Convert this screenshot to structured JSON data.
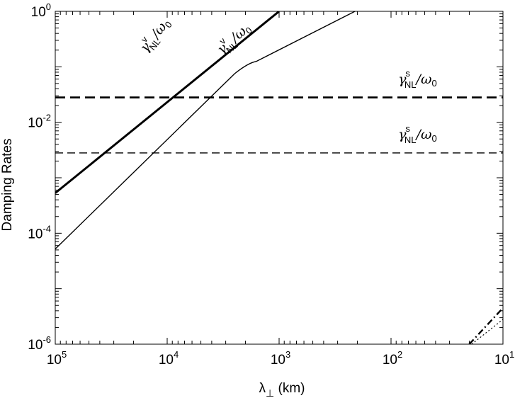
{
  "chart_data": {
    "type": "line",
    "title": "",
    "xlabel": "λ⊥ (km)",
    "xlabel_main": "λ",
    "xlabel_sub": "⊥",
    "xlabel_unit": " (km)",
    "ylabel": "Damping Rates",
    "xscale": "log",
    "yscale": "log",
    "x_reversed": true,
    "xlim": [
      100000,
      10
    ],
    "ylim": [
      1e-06,
      1
    ],
    "x_ticks": [
      {
        "value": 100000,
        "base": "10",
        "exp": "5"
      },
      {
        "value": 10000,
        "base": "10",
        "exp": "4"
      },
      {
        "value": 1000,
        "base": "10",
        "exp": "3"
      },
      {
        "value": 100,
        "base": "10",
        "exp": "2"
      },
      {
        "value": 10,
        "base": "10",
        "exp": "1"
      }
    ],
    "y_ticks": [
      {
        "value": 1,
        "base": "10",
        "exp": "0"
      },
      {
        "value": 0.01,
        "base": "10",
        "exp": "-2"
      },
      {
        "value": 0.0001,
        "base": "10",
        "exp": "-4"
      },
      {
        "value": 1e-06,
        "base": "10",
        "exp": "-6"
      }
    ],
    "series": [
      {
        "name": "γ^v_NL/ω0 (thick)",
        "style": "solid-thick",
        "points": [
          [
            100000,
            0.00053
          ],
          [
            1000,
            1.0
          ]
        ]
      },
      {
        "name": "γ^v_NL/ω0 (thin)",
        "style": "solid-thin",
        "points": [
          [
            100000,
            5.2e-05
          ],
          [
            2500,
            0.075
          ],
          [
            1600,
            0.125
          ],
          [
            210,
            1.0
          ]
        ]
      },
      {
        "name": "γ^s_NL/ω0 (thick)",
        "style": "dashed-thick",
        "points": [
          [
            100000,
            0.028
          ],
          [
            10,
            0.028
          ]
        ]
      },
      {
        "name": "γ^s_NL/ω0 (thin)",
        "style": "dashed-thin",
        "points": [
          [
            100000,
            0.0028
          ],
          [
            10,
            0.0028
          ]
        ]
      },
      {
        "name": "dash-dot",
        "style": "dashdot",
        "points": [
          [
            20,
            1e-06
          ],
          [
            10,
            4.5e-06
          ]
        ]
      },
      {
        "name": "dotted",
        "style": "dotted",
        "points": [
          [
            19,
            1e-06
          ],
          [
            10,
            2.8e-06
          ]
        ]
      }
    ],
    "annotations": [
      {
        "main": "γ",
        "sup": "v",
        "sub": "NL",
        "tail": "/ω",
        "tail_sub": "0",
        "x": 12000,
        "y": 0.33,
        "rotate": -52
      },
      {
        "main": "γ",
        "sup": "v",
        "sub": "NL",
        "tail": "/ω",
        "tail_sub": "0",
        "x": 2400,
        "y": 0.28,
        "rotate": -42
      },
      {
        "main": "γ",
        "sup": "s",
        "sub": "NL",
        "tail": "/ω",
        "tail_sub": "0",
        "x": 58,
        "y": 0.05,
        "rotate": 0
      },
      {
        "main": "γ",
        "sup": "s",
        "sub": "NL",
        "tail": "/ω",
        "tail_sub": "0",
        "x": 58,
        "y": 0.005,
        "rotate": 0
      }
    ]
  }
}
